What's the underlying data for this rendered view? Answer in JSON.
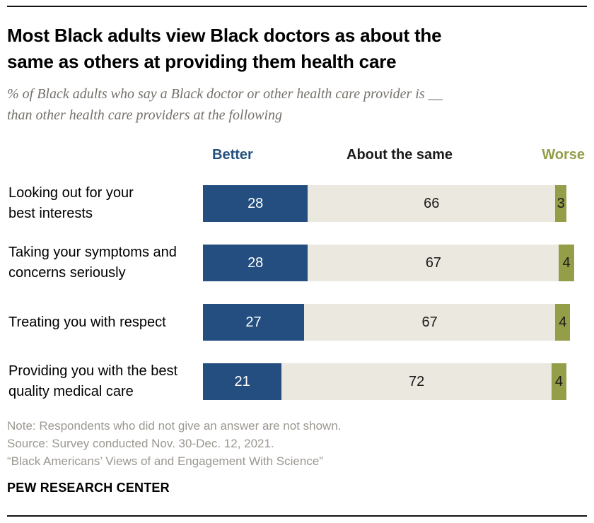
{
  "header": {
    "title_lines": [
      "Most Black adults view Black doctors as about the",
      "same as others at providing them health care"
    ],
    "subtitle_lines": [
      "% of Black adults who say a Black doctor or other health care provider is __",
      "than other health care providers at the following"
    ]
  },
  "chart_data": {
    "type": "bar",
    "orientation": "horizontal",
    "stacked": true,
    "unit": "percent",
    "xlim": [
      0,
      100
    ],
    "legend_position": "top",
    "grid": false,
    "categories": [
      "Looking out for your\nbest interests",
      "Taking your symptoms and\nconcerns seriously",
      "Treating you with respect",
      "Providing you with the best\nquality medical care"
    ],
    "series": [
      {
        "name": "Better",
        "color": "#234e7f",
        "value_color": "#ffffff",
        "label_color": "#23517d",
        "values": [
          28,
          28,
          27,
          21
        ]
      },
      {
        "name": "About the same",
        "color": "#ebe8e0",
        "value_color": "#1a1a1a",
        "label_color": "#1a1a1a",
        "values": [
          66,
          67,
          67,
          72
        ]
      },
      {
        "name": "Worse",
        "color": "#949d48",
        "value_color": "#1a1a1a",
        "label_color": "#949d48",
        "values": [
          3,
          4,
          4,
          4
        ]
      }
    ]
  },
  "footer": {
    "note": "Note: Respondents who did not give an answer are not shown.",
    "source": "Source: Survey conducted Nov. 30-Dec. 12, 2021.",
    "citation": "“Black Americans’ Views of and Engagement With Science”",
    "brand": "PEW RESEARCH CENTER"
  }
}
